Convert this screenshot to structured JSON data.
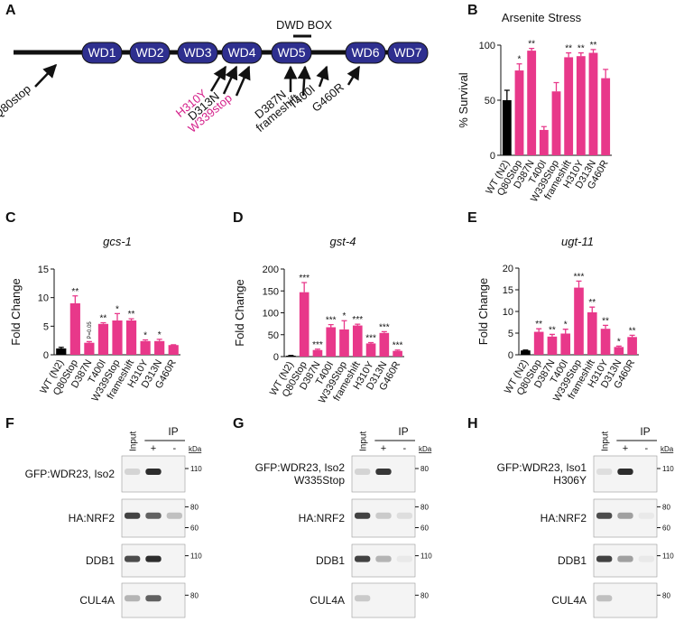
{
  "panel_a": {
    "panel": "A",
    "box_label": "DWD BOX",
    "domains": [
      "WD1",
      "WD2",
      "WD3",
      "WD4",
      "WD5",
      "WD6",
      "WD7"
    ],
    "mutations": [
      {
        "label": "Q80stop",
        "color": "#111111"
      },
      {
        "label": "H310Y",
        "color": "#d4208a"
      },
      {
        "label": "D313N",
        "color": "#111111"
      },
      {
        "label": "W339stop",
        "color": "#d4208a"
      },
      {
        "label": "D387N",
        "color": "#111111"
      },
      {
        "label": "frameshift",
        "color": "#111111"
      },
      {
        "label": "T400I",
        "color": "#111111"
      },
      {
        "label": "G460R",
        "color": "#111111"
      }
    ]
  },
  "chart_data": [
    {
      "type": "bar",
      "panel": "B",
      "title": "Arsenite Stress",
      "title_italic": false,
      "ylabel": "% Survival",
      "categories": [
        "WT (N2)",
        "Q80Stop",
        "D387N",
        "T400I",
        "W339Stop",
        "frameshift",
        "H310Y",
        "D313N",
        "G460R"
      ],
      "values": [
        50,
        77,
        95,
        23,
        58,
        89,
        90,
        93,
        70
      ],
      "errors": [
        9,
        6,
        2,
        3,
        8,
        4,
        3,
        3,
        8
      ],
      "significance": [
        null,
        "*",
        "**",
        null,
        null,
        "**",
        "**",
        "**",
        null
      ],
      "colors": [
        "#000000",
        "#e8388a",
        "#e8388a",
        "#e8388a",
        "#e8388a",
        "#e8388a",
        "#e8388a",
        "#e8388a",
        "#e8388a"
      ],
      "ylim": [
        0,
        100
      ],
      "yticks": [
        0,
        50,
        100
      ]
    },
    {
      "type": "bar",
      "panel": "C",
      "title": "gcs-1",
      "title_italic": true,
      "ylabel": "Fold Change",
      "categories": [
        "WT (N2)",
        "Q80Stop",
        "D387N",
        "T400I",
        "W339Stop",
        "frameshift",
        "H310Y",
        "D313N",
        "G460R"
      ],
      "values": [
        1.1,
        9,
        2.1,
        5.4,
        6,
        6,
        2.4,
        2.4,
        1.7
      ],
      "errors": [
        0.2,
        1.3,
        0.2,
        0.2,
        1.2,
        0.3,
        0.2,
        0.3,
        0.05
      ],
      "significance": [
        null,
        "**",
        "P=0.05",
        "**",
        "*",
        "**",
        "*",
        "*",
        null
      ],
      "colors": [
        "#000000",
        "#e8388a",
        "#e8388a",
        "#e8388a",
        "#e8388a",
        "#e8388a",
        "#e8388a",
        "#e8388a",
        "#e8388a"
      ],
      "ylim": [
        0,
        15
      ],
      "yticks": [
        0,
        5,
        10,
        15
      ]
    },
    {
      "type": "bar",
      "panel": "D",
      "title": "gst-4",
      "title_italic": true,
      "ylabel": "Fold Change",
      "categories": [
        "WT (N2)",
        "Q80Stop",
        "D387N",
        "T400I",
        "W339Stop",
        "frameshift",
        "H310Y",
        "D313N",
        "G460R"
      ],
      "values": [
        2,
        147,
        15,
        67,
        62,
        71,
        30,
        54,
        13
      ],
      "errors": [
        0.5,
        22,
        2,
        6,
        20,
        3,
        2,
        3,
        2
      ],
      "significance": [
        null,
        "***",
        "***",
        "***",
        "*",
        "***",
        "***",
        "***",
        "***"
      ],
      "colors": [
        "#000000",
        "#e8388a",
        "#e8388a",
        "#e8388a",
        "#e8388a",
        "#e8388a",
        "#e8388a",
        "#e8388a",
        "#e8388a"
      ],
      "ylim": [
        0,
        200
      ],
      "yticks": [
        0,
        50,
        100,
        150,
        200
      ]
    },
    {
      "type": "bar",
      "panel": "E",
      "title": "ugt-11",
      "title_italic": true,
      "ylabel": "Fold Change",
      "categories": [
        "WT (N2)",
        "Q80Stop",
        "D387N",
        "T400I",
        "W339Stop",
        "frameshift",
        "H310Y",
        "D313N",
        "G460R"
      ],
      "values": [
        1,
        5.3,
        4.2,
        4.9,
        15.5,
        9.8,
        6,
        1.8,
        4.1
      ],
      "errors": [
        0.1,
        0.7,
        0.5,
        1,
        1.5,
        1.2,
        0.8,
        0.2,
        0.4
      ],
      "significance": [
        null,
        "**",
        "**",
        "*",
        "***",
        "**",
        "**",
        "*",
        "**"
      ],
      "colors": [
        "#000000",
        "#e8388a",
        "#e8388a",
        "#e8388a",
        "#e8388a",
        "#e8388a",
        "#e8388a",
        "#e8388a",
        "#e8388a"
      ],
      "ylim": [
        0,
        20
      ],
      "yticks": [
        0,
        5,
        10,
        15,
        20
      ]
    }
  ],
  "blots": [
    {
      "panel": "F",
      "ip": "IP",
      "lanes": [
        "Input",
        "+",
        "-"
      ],
      "kda": "kDa",
      "rows": [
        {
          "label": [
            "GFP:WDR23, Iso2"
          ],
          "markers": [
            "110"
          ]
        },
        {
          "label": [
            "HA:NRF2"
          ],
          "markers": [
            "80",
            "60"
          ]
        },
        {
          "label": [
            "DDB1"
          ],
          "markers": [
            "110"
          ]
        },
        {
          "label": [
            "CUL4A"
          ],
          "markers": [
            "80"
          ]
        }
      ]
    },
    {
      "panel": "G",
      "ip": "IP",
      "lanes": [
        "Input",
        "+",
        "-"
      ],
      "kda": "kDa",
      "rows": [
        {
          "label": [
            "GFP:WDR23, Iso2",
            "W335Stop"
          ],
          "markers": [
            "80"
          ]
        },
        {
          "label": [
            "HA:NRF2"
          ],
          "markers": [
            "80",
            "60"
          ]
        },
        {
          "label": [
            "DDB1"
          ],
          "markers": [
            "110"
          ]
        },
        {
          "label": [
            "CUL4A"
          ],
          "markers": [
            "80"
          ]
        }
      ]
    },
    {
      "panel": "H",
      "ip": "IP",
      "lanes": [
        "Input",
        "+",
        "-"
      ],
      "kda": "kDa",
      "rows": [
        {
          "label": [
            "GFP:WDR23, Iso1",
            "H306Y"
          ],
          "markers": [
            "110"
          ]
        },
        {
          "label": [
            "HA:NRF2"
          ],
          "markers": [
            "80",
            "60"
          ]
        },
        {
          "label": [
            "DDB1"
          ],
          "markers": [
            "110"
          ]
        },
        {
          "label": [
            "CUL4A"
          ],
          "markers": [
            "80"
          ]
        }
      ]
    }
  ]
}
